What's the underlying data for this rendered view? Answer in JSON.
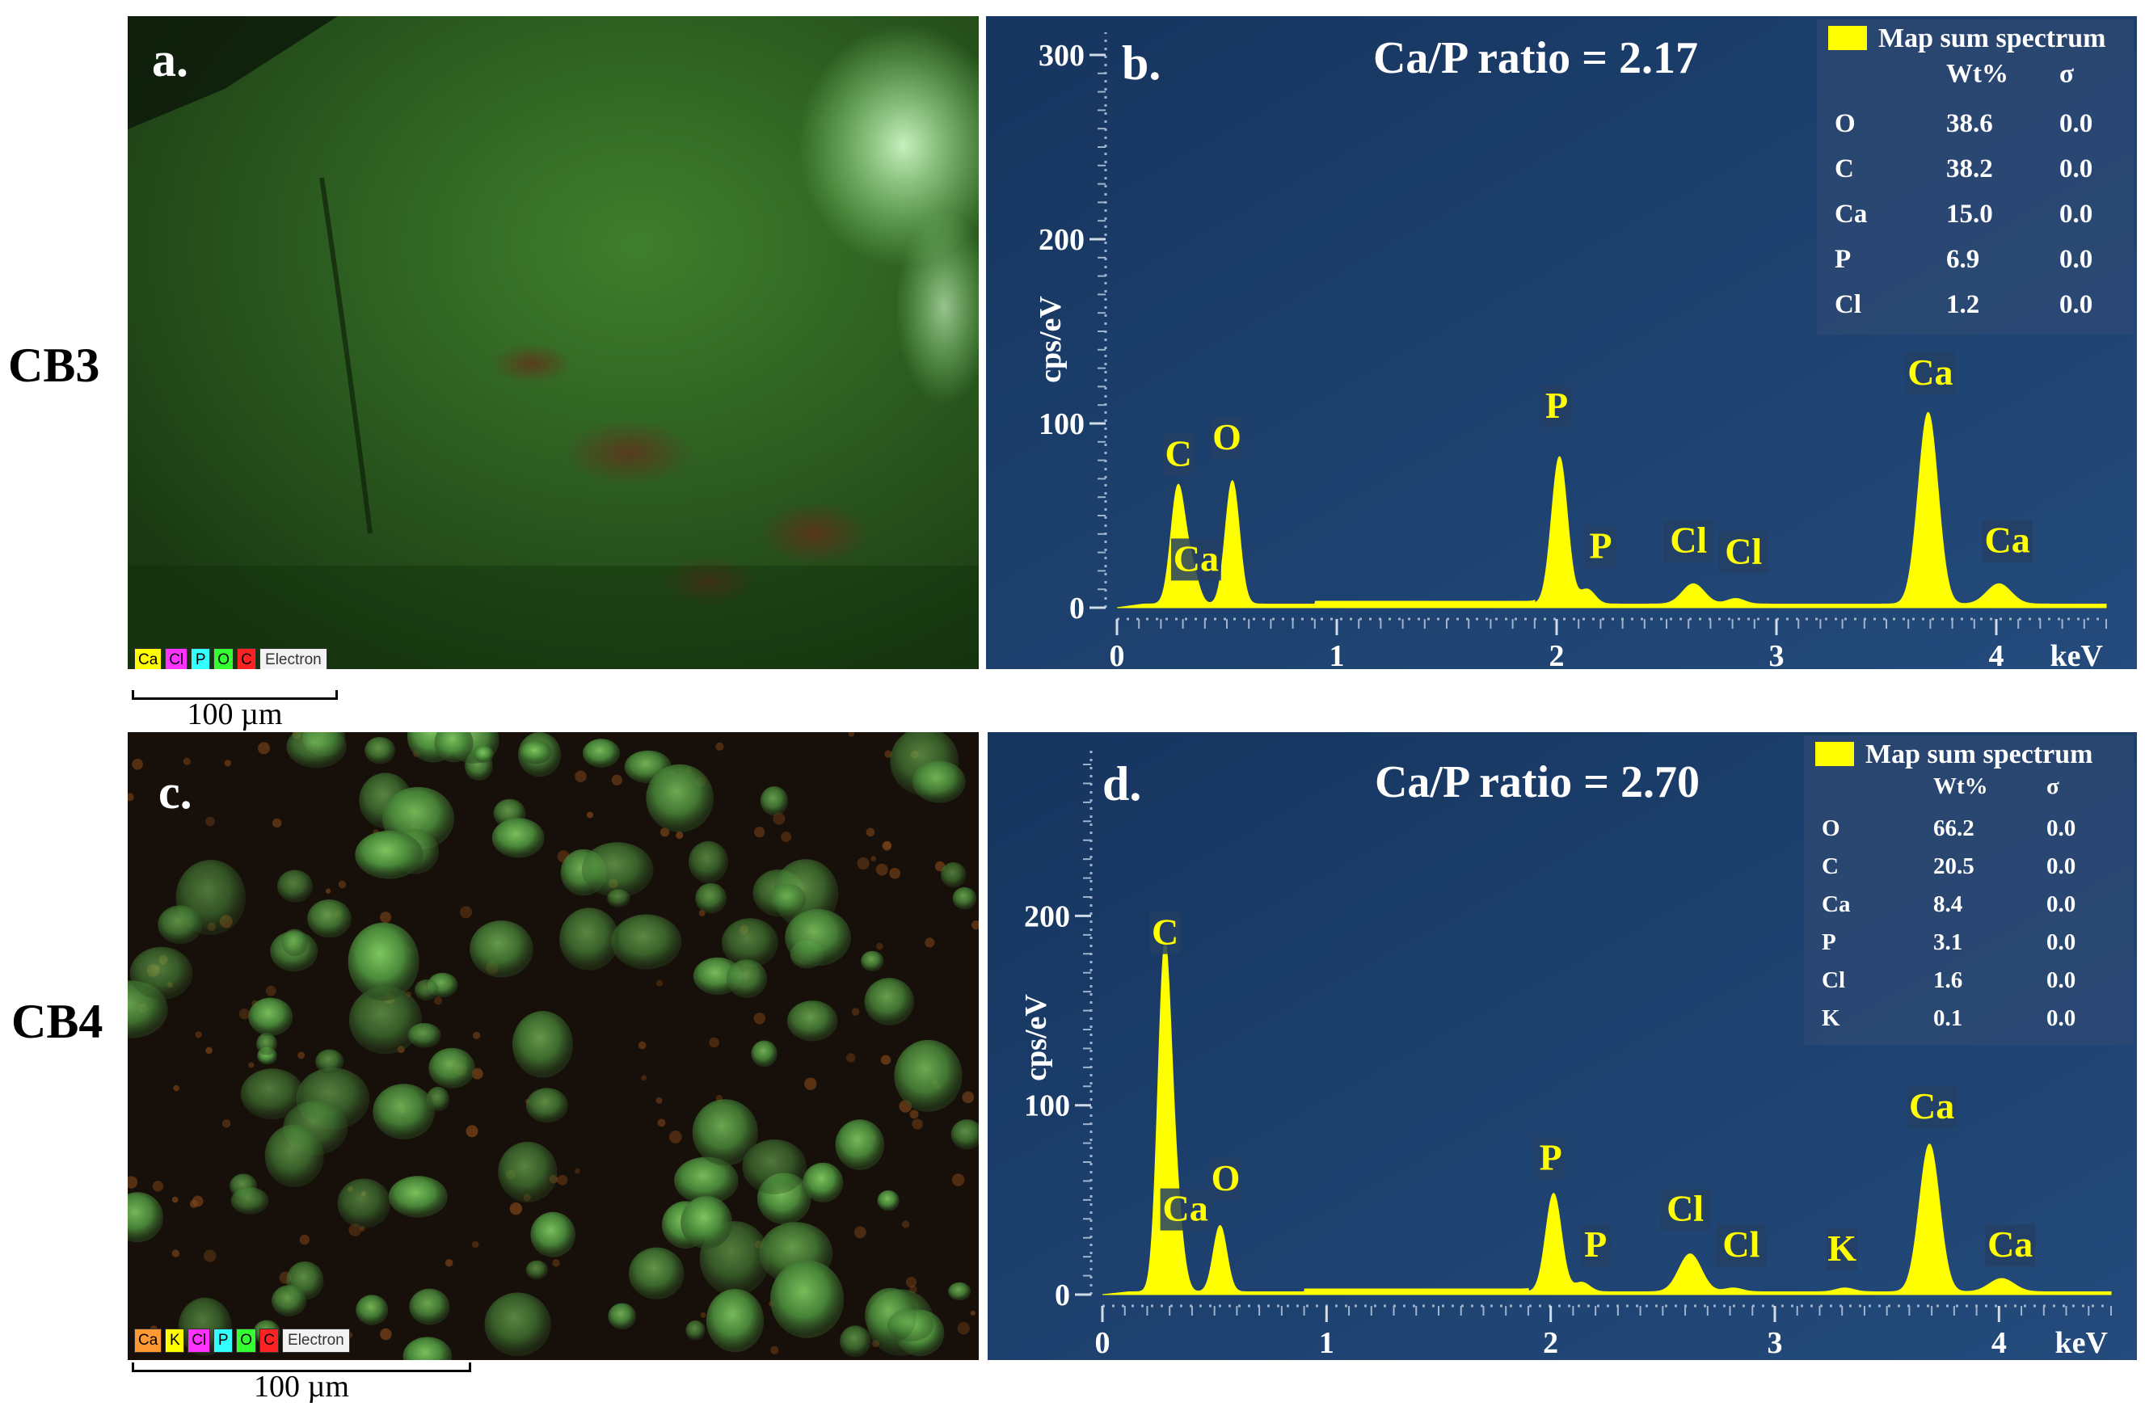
{
  "rows": [
    {
      "label": "CB3",
      "map": {
        "letter": "a.",
        "legend_chips": [
          {
            "text": "Ca",
            "color": "#ffff00"
          },
          {
            "text": "Cl",
            "color": "#ff33ff"
          },
          {
            "text": "P",
            "color": "#33ffff"
          },
          {
            "text": "O",
            "color": "#33ff33"
          },
          {
            "text": "C",
            "color": "#ff2222"
          },
          {
            "text": "Electron",
            "color": "#f3f3f3"
          }
        ],
        "scale_label": "100 µm"
      },
      "chart_data": {
        "type": "area",
        "panel_letter": "b.",
        "title": "Ca/P ratio = 2.17",
        "xlabel": "keV",
        "ylabel": "cps/eV",
        "xlim": [
          0,
          4.5
        ],
        "ylim": [
          0,
          300
        ],
        "x_ticks": [
          0,
          1,
          2,
          3,
          4
        ],
        "y_ticks": [
          0,
          100,
          200,
          300
        ],
        "series_color": "#ffff00",
        "background": "#1d3e6b",
        "peaks": [
          {
            "x": 0.277,
            "height": 63,
            "width": 0.032
          },
          {
            "x": 0.341,
            "height": 18,
            "width": 0.03
          },
          {
            "x": 0.525,
            "height": 67,
            "width": 0.032
          },
          {
            "x": 2.013,
            "height": 80,
            "width": 0.036
          },
          {
            "x": 2.139,
            "height": 8,
            "width": 0.035
          },
          {
            "x": 2.622,
            "height": 11,
            "width": 0.05
          },
          {
            "x": 2.815,
            "height": 3,
            "width": 0.04
          },
          {
            "x": 3.69,
            "height": 104,
            "width": 0.045
          },
          {
            "x": 4.012,
            "height": 11,
            "width": 0.055
          }
        ],
        "baseline": 2,
        "peak_labels": [
          {
            "text": "C",
            "x": 0.28,
            "y": 77
          },
          {
            "text": "Ca",
            "x": 0.36,
            "y": 20
          },
          {
            "text": "O",
            "x": 0.5,
            "y": 86
          },
          {
            "text": "P",
            "x": 2.0,
            "y": 103
          },
          {
            "text": "P",
            "x": 2.2,
            "y": 27
          },
          {
            "text": "Cl",
            "x": 2.6,
            "y": 30
          },
          {
            "text": "Cl",
            "x": 2.85,
            "y": 24
          },
          {
            "text": "Ca",
            "x": 3.7,
            "y": 121
          },
          {
            "text": "Ca",
            "x": 4.05,
            "y": 30
          }
        ],
        "legend": {
          "swatch_color": "#ffff00",
          "title": "Map sum spectrum",
          "headers": [
            "",
            "Wt%",
            "σ"
          ],
          "rows": [
            [
              "O",
              "38.6",
              "0.0"
            ],
            [
              "C",
              "38.2",
              "0.0"
            ],
            [
              "Ca",
              "15.0",
              "0.0"
            ],
            [
              "P",
              "6.9",
              "0.0"
            ],
            [
              "Cl",
              "1.2",
              "0.0"
            ]
          ]
        }
      }
    },
    {
      "label": "CB4",
      "map": {
        "letter": "c.",
        "legend_chips": [
          {
            "text": "Ca",
            "color": "#ff9933"
          },
          {
            "text": "K",
            "color": "#ffff00"
          },
          {
            "text": "Cl",
            "color": "#ff33ff"
          },
          {
            "text": "P",
            "color": "#33ffff"
          },
          {
            "text": "O",
            "color": "#33ff33"
          },
          {
            "text": "C",
            "color": "#ff2222"
          },
          {
            "text": "Electron",
            "color": "#f3f3f3"
          }
        ],
        "scale_label": "100 µm"
      },
      "chart_data": {
        "type": "area",
        "panel_letter": "d.",
        "title": "Ca/P ratio = 2.70",
        "xlabel": "keV",
        "ylabel": "cps/eV",
        "xlim": [
          0,
          4.5
        ],
        "ylim": [
          0,
          280
        ],
        "x_ticks": [
          0,
          1,
          2,
          3,
          4
        ],
        "y_ticks": [
          0,
          100,
          200
        ],
        "series_color": "#ffff00",
        "background": "#1d3e6b",
        "peaks": [
          {
            "x": 0.277,
            "height": 176,
            "width": 0.03
          },
          {
            "x": 0.33,
            "height": 40,
            "width": 0.03
          },
          {
            "x": 0.525,
            "height": 35,
            "width": 0.03
          },
          {
            "x": 2.013,
            "height": 52,
            "width": 0.035
          },
          {
            "x": 2.139,
            "height": 5,
            "width": 0.035
          },
          {
            "x": 2.622,
            "height": 20,
            "width": 0.05
          },
          {
            "x": 2.815,
            "height": 2,
            "width": 0.04
          },
          {
            "x": 3.313,
            "height": 2,
            "width": 0.04
          },
          {
            "x": 3.69,
            "height": 78,
            "width": 0.045
          },
          {
            "x": 4.012,
            "height": 7,
            "width": 0.055
          }
        ],
        "baseline": 1.5,
        "peak_labels": [
          {
            "text": "C",
            "x": 0.28,
            "y": 185
          },
          {
            "text": "Ca",
            "x": 0.37,
            "y": 39
          },
          {
            "text": "O",
            "x": 0.55,
            "y": 55
          },
          {
            "text": "P",
            "x": 2.0,
            "y": 66
          },
          {
            "text": "P",
            "x": 2.2,
            "y": 20
          },
          {
            "text": "Cl",
            "x": 2.6,
            "y": 39
          },
          {
            "text": "Cl",
            "x": 2.85,
            "y": 20
          },
          {
            "text": "K",
            "x": 3.3,
            "y": 18
          },
          {
            "text": "Ca",
            "x": 3.7,
            "y": 93
          },
          {
            "text": "Ca",
            "x": 4.05,
            "y": 20
          }
        ],
        "legend": {
          "swatch_color": "#ffff00",
          "title": "Map sum spectrum",
          "headers": [
            "",
            "Wt%",
            "σ"
          ],
          "rows": [
            [
              "O",
              "66.2",
              "0.0"
            ],
            [
              "C",
              "20.5",
              "0.0"
            ],
            [
              "Ca",
              "8.4",
              "0.0"
            ],
            [
              "P",
              "3.1",
              "0.0"
            ],
            [
              "Cl",
              "1.6",
              "0.0"
            ],
            [
              "K",
              "0.1",
              "0.0"
            ]
          ]
        }
      }
    }
  ]
}
